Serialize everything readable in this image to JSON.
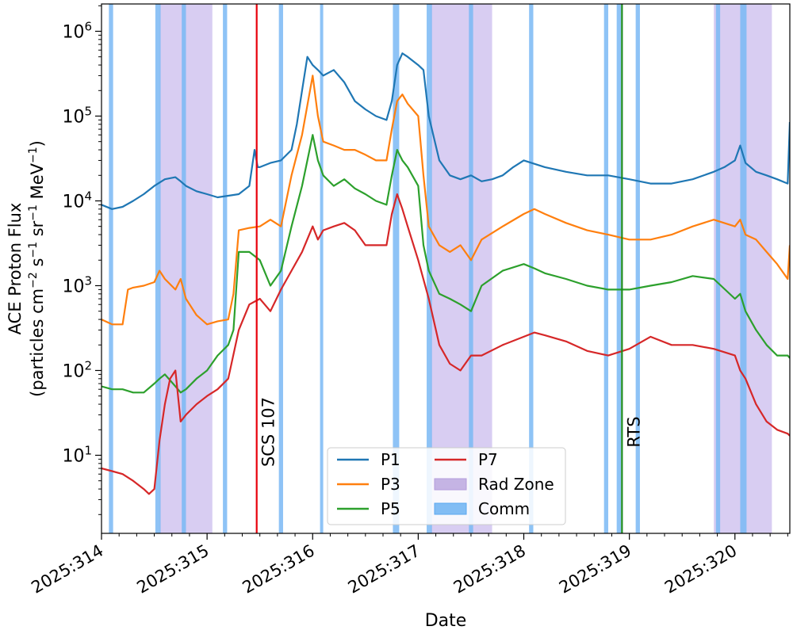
{
  "chart_data": {
    "type": "line",
    "title": "",
    "xlabel": "Date",
    "ylabel_line1": "ACE Proton Flux",
    "ylabel_line2_parts": [
      "(particles cm",
      "−2",
      " s",
      "−1",
      " sr",
      "−1",
      " MeV",
      "−1",
      ")"
    ],
    "yscale": "log",
    "ylim": [
      1.2,
      2100000
    ],
    "xlim": [
      314.0,
      320.52
    ],
    "x_ticks": [
      314,
      315,
      316,
      317,
      318,
      319,
      320
    ],
    "x_tick_labels": [
      "2025:314",
      "2025:315",
      "2025:316",
      "2025:317",
      "2025:318",
      "2025:319",
      "2025:320"
    ],
    "y_ticks": [
      {
        "value": 10,
        "base": "10",
        "exp": "1"
      },
      {
        "value": 100,
        "base": "10",
        "exp": "2"
      },
      {
        "value": 1000,
        "base": "10",
        "exp": "3"
      },
      {
        "value": 10000,
        "base": "10",
        "exp": "4"
      },
      {
        "value": 100000,
        "base": "10",
        "exp": "5"
      },
      {
        "value": 1000000,
        "base": "10",
        "exp": "6"
      }
    ],
    "series": [
      {
        "name": "P1",
        "color": "#1f77b4",
        "x": [
          314.0,
          314.1,
          314.2,
          314.3,
          314.4,
          314.5,
          314.6,
          314.7,
          314.75,
          314.8,
          314.9,
          315.0,
          315.1,
          315.2,
          315.3,
          315.4,
          315.45,
          315.48,
          315.5,
          315.6,
          315.7,
          315.8,
          315.85,
          315.9,
          315.95,
          316.0,
          316.05,
          316.1,
          316.2,
          316.3,
          316.4,
          316.5,
          316.6,
          316.7,
          316.75,
          316.8,
          316.85,
          316.9,
          317.0,
          317.05,
          317.1,
          317.2,
          317.3,
          317.4,
          317.5,
          317.6,
          317.7,
          317.8,
          317.9,
          318.0,
          318.2,
          318.4,
          318.6,
          318.8,
          319.0,
          319.2,
          319.4,
          319.6,
          319.8,
          319.9,
          320.0,
          320.05,
          320.1,
          320.2,
          320.3,
          320.4,
          320.5,
          320.52
        ],
        "y": [
          9000,
          8000,
          8500,
          10000,
          12000,
          15000,
          18000,
          19000,
          17000,
          15000,
          13000,
          12000,
          11000,
          11500,
          12000,
          15000,
          40000,
          25000,
          25000,
          28000,
          30000,
          40000,
          80000,
          200000,
          500000,
          400000,
          350000,
          300000,
          350000,
          250000,
          150000,
          120000,
          100000,
          90000,
          150000,
          400000,
          550000,
          500000,
          400000,
          350000,
          100000,
          30000,
          20000,
          18000,
          20000,
          17000,
          18000,
          20000,
          25000,
          30000,
          25000,
          22000,
          20000,
          20000,
          18000,
          16000,
          16000,
          18000,
          22000,
          25000,
          30000,
          45000,
          28000,
          22000,
          20000,
          18000,
          16000,
          85000
        ]
      },
      {
        "name": "P3",
        "color": "#ff7f0e",
        "x": [
          314.0,
          314.1,
          314.2,
          314.25,
          314.3,
          314.4,
          314.5,
          314.55,
          314.6,
          314.7,
          314.75,
          314.8,
          314.9,
          315.0,
          315.1,
          315.2,
          315.25,
          315.3,
          315.4,
          315.5,
          315.6,
          315.7,
          315.8,
          315.9,
          316.0,
          316.05,
          316.1,
          316.2,
          316.3,
          316.4,
          316.5,
          316.6,
          316.7,
          316.75,
          316.8,
          316.85,
          316.9,
          317.0,
          317.05,
          317.1,
          317.2,
          317.3,
          317.4,
          317.5,
          317.6,
          317.8,
          318.0,
          318.1,
          318.2,
          318.4,
          318.6,
          318.8,
          319.0,
          319.2,
          319.4,
          319.6,
          319.8,
          320.0,
          320.05,
          320.1,
          320.2,
          320.3,
          320.4,
          320.5,
          320.52
        ],
        "y": [
          400,
          350,
          350,
          900,
          950,
          1000,
          1100,
          1500,
          1200,
          900,
          1200,
          700,
          450,
          350,
          380,
          400,
          800,
          4500,
          4800,
          5000,
          6000,
          5000,
          20000,
          60000,
          300000,
          100000,
          50000,
          45000,
          40000,
          40000,
          35000,
          30000,
          30000,
          70000,
          150000,
          180000,
          140000,
          100000,
          20000,
          5000,
          3000,
          2500,
          3000,
          2000,
          3500,
          5000,
          7000,
          8000,
          7000,
          5500,
          4500,
          4000,
          3500,
          3500,
          4000,
          5000,
          6000,
          5000,
          6000,
          4000,
          3500,
          2500,
          1800,
          1200,
          3000
        ]
      },
      {
        "name": "P5",
        "color": "#2ca02c",
        "x": [
          314.0,
          314.1,
          314.2,
          314.3,
          314.4,
          314.5,
          314.55,
          314.6,
          314.7,
          314.75,
          314.8,
          314.9,
          315.0,
          315.1,
          315.2,
          315.25,
          315.3,
          315.4,
          315.5,
          315.6,
          315.7,
          315.8,
          315.9,
          316.0,
          316.05,
          316.1,
          316.2,
          316.3,
          316.4,
          316.5,
          316.6,
          316.7,
          316.75,
          316.8,
          316.85,
          316.9,
          317.0,
          317.05,
          317.1,
          317.2,
          317.3,
          317.4,
          317.5,
          317.6,
          317.8,
          318.0,
          318.1,
          318.2,
          318.4,
          318.6,
          318.8,
          319.0,
          319.2,
          319.4,
          319.6,
          319.8,
          320.0,
          320.05,
          320.1,
          320.2,
          320.3,
          320.4,
          320.5,
          320.52
        ],
        "y": [
          65,
          60,
          60,
          55,
          55,
          70,
          80,
          90,
          65,
          55,
          60,
          80,
          100,
          150,
          200,
          300,
          2500,
          2500,
          2000,
          1000,
          1500,
          5000,
          15000,
          60000,
          30000,
          20000,
          15000,
          18000,
          14000,
          12000,
          10000,
          9000,
          20000,
          40000,
          30000,
          25000,
          15000,
          3000,
          1500,
          800,
          700,
          600,
          500,
          1000,
          1500,
          1800,
          1600,
          1400,
          1200,
          1000,
          900,
          900,
          1000,
          1100,
          1300,
          1200,
          700,
          800,
          500,
          300,
          200,
          150,
          150,
          140
        ]
      },
      {
        "name": "P7",
        "color": "#d62728",
        "x": [
          314.0,
          314.1,
          314.2,
          314.3,
          314.4,
          314.45,
          314.5,
          314.55,
          314.6,
          314.65,
          314.7,
          314.75,
          314.8,
          314.9,
          315.0,
          315.1,
          315.2,
          315.3,
          315.4,
          315.5,
          315.6,
          315.7,
          315.8,
          315.9,
          316.0,
          316.05,
          316.1,
          316.2,
          316.3,
          316.4,
          316.5,
          316.6,
          316.7,
          316.75,
          316.8,
          316.85,
          316.9,
          317.0,
          317.1,
          317.2,
          317.3,
          317.4,
          317.5,
          317.6,
          317.8,
          318.0,
          318.1,
          318.2,
          318.4,
          318.6,
          318.8,
          319.0,
          319.2,
          319.4,
          319.6,
          319.8,
          320.0,
          320.05,
          320.1,
          320.2,
          320.3,
          320.4,
          320.5,
          320.52
        ],
        "y": [
          7,
          6.5,
          6,
          5,
          4,
          3.5,
          4,
          15,
          40,
          80,
          100,
          25,
          30,
          40,
          50,
          60,
          80,
          300,
          600,
          700,
          500,
          900,
          1500,
          2500,
          5000,
          3500,
          4500,
          5000,
          5500,
          4500,
          3000,
          3000,
          3000,
          7000,
          12000,
          8000,
          5000,
          2000,
          700,
          200,
          120,
          100,
          150,
          150,
          200,
          250,
          280,
          260,
          220,
          170,
          150,
          180,
          250,
          200,
          200,
          180,
          150,
          100,
          80,
          40,
          25,
          20,
          18,
          17
        ]
      }
    ],
    "rad_zones": [
      [
        314.55,
        315.05
      ],
      [
        317.12,
        317.7
      ],
      [
        319.8,
        320.35
      ]
    ],
    "comm_windows": [
      [
        314.07,
        314.11
      ],
      [
        314.51,
        314.56
      ],
      [
        314.76,
        314.8
      ],
      [
        315.15,
        315.19
      ],
      [
        315.68,
        315.72
      ],
      [
        316.07,
        316.1
      ],
      [
        316.76,
        316.82
      ],
      [
        317.08,
        317.13
      ],
      [
        317.48,
        317.52
      ],
      [
        318.05,
        318.09
      ],
      [
        318.76,
        318.8
      ],
      [
        318.88,
        318.92
      ],
      [
        319.06,
        319.1
      ],
      [
        319.82,
        319.86
      ],
      [
        320.05,
        320.11
      ]
    ],
    "events": [
      {
        "label": "SCS 107",
        "x": 315.47,
        "color": "#e8000b"
      },
      {
        "label": "RTS",
        "x": 318.93,
        "color": "#1a8a1a"
      }
    ],
    "legend": {
      "location": "lower-center",
      "entries": [
        {
          "label": "P1",
          "kind": "line",
          "color": "#1f77b4"
        },
        {
          "label": "P3",
          "kind": "line",
          "color": "#ff7f0e"
        },
        {
          "label": "P5",
          "kind": "line",
          "color": "#2ca02c"
        },
        {
          "label": "P7",
          "kind": "line",
          "color": "#d62728"
        },
        {
          "label": "Rad Zone",
          "kind": "patch",
          "color": "#b39ddb"
        },
        {
          "label": "Comm",
          "kind": "patch",
          "color": "#5aa9f0"
        }
      ]
    },
    "styles": {
      "rad_zone_color": "#c7b8ec",
      "comm_color": "#7ab8f5"
    }
  }
}
